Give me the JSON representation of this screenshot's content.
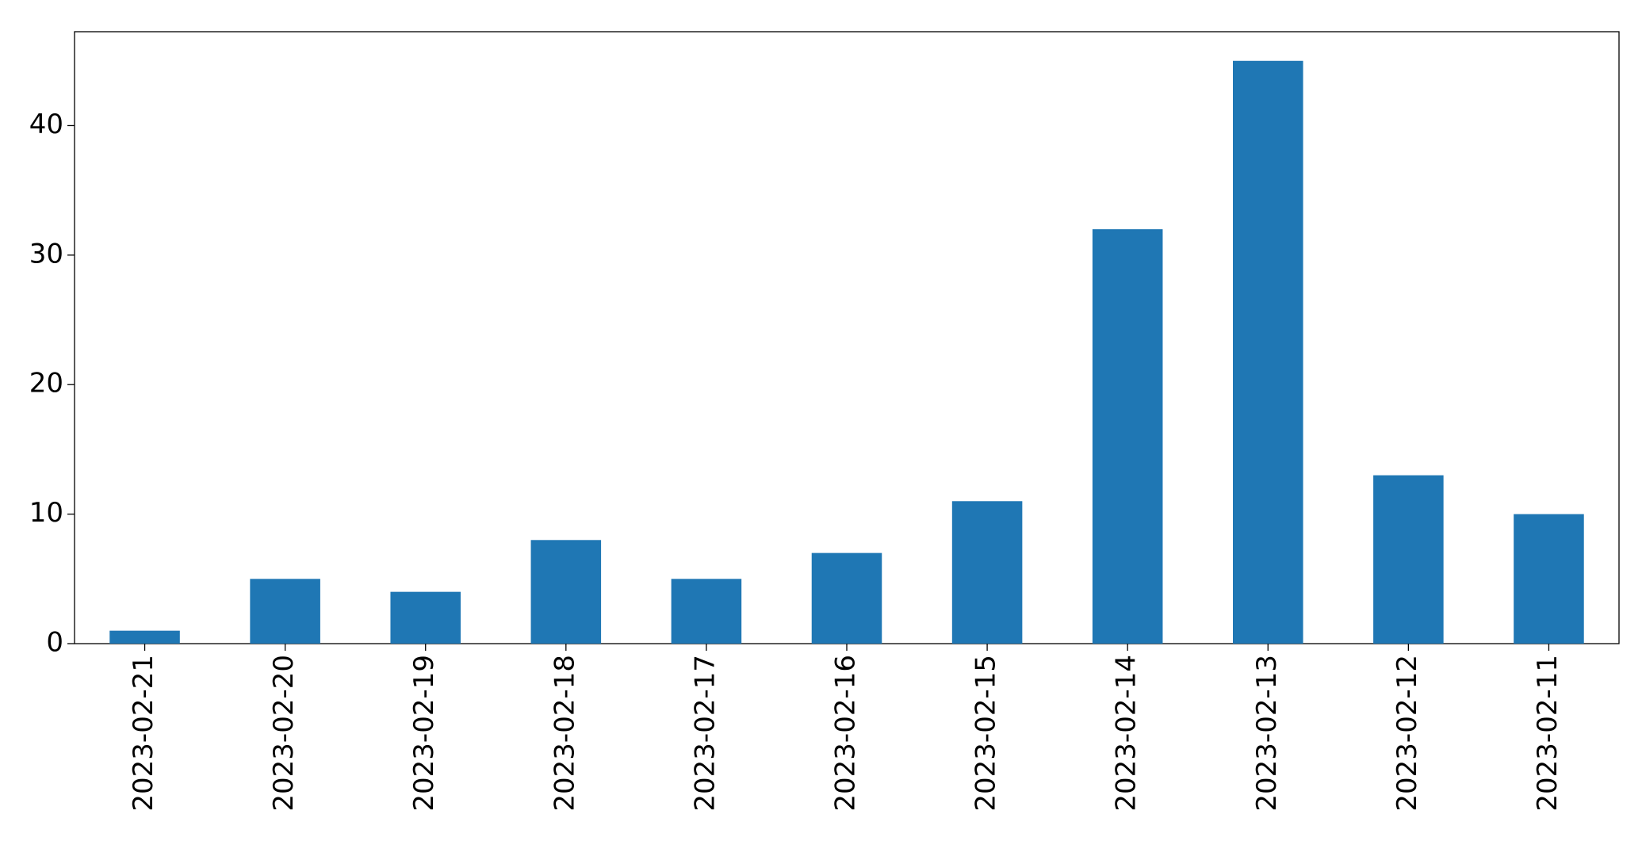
{
  "chart_data": {
    "type": "bar",
    "categories": [
      "2023-02-21",
      "2023-02-20",
      "2023-02-19",
      "2023-02-18",
      "2023-02-17",
      "2023-02-16",
      "2023-02-15",
      "2023-02-14",
      "2023-02-13",
      "2023-02-12",
      "2023-02-11"
    ],
    "values": [
      1,
      5,
      4,
      8,
      5,
      7,
      11,
      32,
      45,
      13,
      10
    ],
    "color": "#1f77b4",
    "ylim": [
      0,
      47.25
    ],
    "yticks": [
      0,
      10,
      20,
      30,
      40
    ],
    "grid": false
  }
}
